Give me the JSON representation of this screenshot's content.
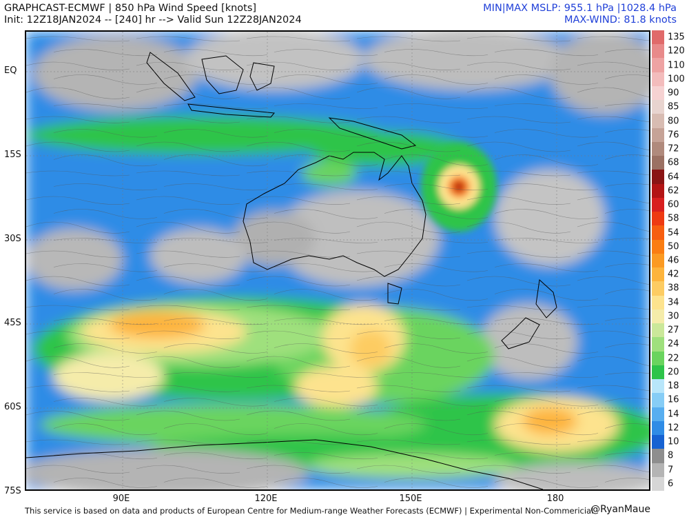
{
  "header": {
    "title_line1": "GRAPHCAST-ECMWF | 850 hPa Wind Speed [knots]",
    "title_line2": "Init: 12Z18JAN2024 -- [240] hr --> Valid Sun 12Z28JAN2024",
    "stats_line1": "MIN|MAX MSLP: 955.1 hPa |1028.4 hPa",
    "stats_line2": "MAX-WIND: 81.8 knots"
  },
  "axes": {
    "lat_labels": [
      "EQ",
      "15S",
      "30S",
      "45S",
      "60S",
      "75S"
    ],
    "lon_labels": [
      "90E",
      "120E",
      "150E",
      "180"
    ]
  },
  "colorbar": {
    "levels": [
      {
        "label": "135",
        "color": "#e06a6a"
      },
      {
        "label": "120",
        "color": "#e88a8a"
      },
      {
        "label": "110",
        "color": "#eea3a3"
      },
      {
        "label": "100",
        "color": "#f3bcbc"
      },
      {
        "label": "90",
        "color": "#f6d2d2"
      },
      {
        "label": "85",
        "color": "#e8d4cf"
      },
      {
        "label": "80",
        "color": "#d8bcb2"
      },
      {
        "label": "76",
        "color": "#c6a397"
      },
      {
        "label": "72",
        "color": "#b08a7c"
      },
      {
        "label": "68",
        "color": "#9b7163"
      },
      {
        "label": "64",
        "color": "#8a1414"
      },
      {
        "label": "62",
        "color": "#b31414"
      },
      {
        "label": "60",
        "color": "#d81f1f"
      },
      {
        "label": "58",
        "color": "#ee3a12"
      },
      {
        "label": "54",
        "color": "#f75e10"
      },
      {
        "label": "50",
        "color": "#fa7d12"
      },
      {
        "label": "46",
        "color": "#fb9a22"
      },
      {
        "label": "42",
        "color": "#fdb43c"
      },
      {
        "label": "38",
        "color": "#fdcc62"
      },
      {
        "label": "34",
        "color": "#fde38e"
      },
      {
        "label": "30",
        "color": "#f5ecaa"
      },
      {
        "label": "27",
        "color": "#cbe89a"
      },
      {
        "label": "24",
        "color": "#9fe07d"
      },
      {
        "label": "22",
        "color": "#6ad45e"
      },
      {
        "label": "20",
        "color": "#2ec44a"
      },
      {
        "label": "18",
        "color": "#b8e6fa"
      },
      {
        "label": "16",
        "color": "#86cdf6"
      },
      {
        "label": "14",
        "color": "#57aef0"
      },
      {
        "label": "12",
        "color": "#2f8ce6"
      },
      {
        "label": "10",
        "color": "#1662d2"
      },
      {
        "label": "8",
        "color": "#8e8e8e"
      },
      {
        "label": "7",
        "color": "#b4b4b4"
      },
      {
        "label": "6",
        "color": "#d6d6d6"
      }
    ]
  },
  "footer": {
    "disclaimer": "This service is based on data and products of European Centre for Medium-range Weather Forecasts (ECMWF) | Experimental Non-Commericial",
    "credit": "@RyanMaue"
  },
  "map": {
    "projection": "lat-lon",
    "lon_range": [
      68,
      197
    ],
    "lat_range": [
      -75,
      7
    ],
    "features": [
      "Australia",
      "Indonesia",
      "Papua New Guinea",
      "New Zealand",
      "Antarctica coast",
      "tropical cyclone"
    ]
  }
}
